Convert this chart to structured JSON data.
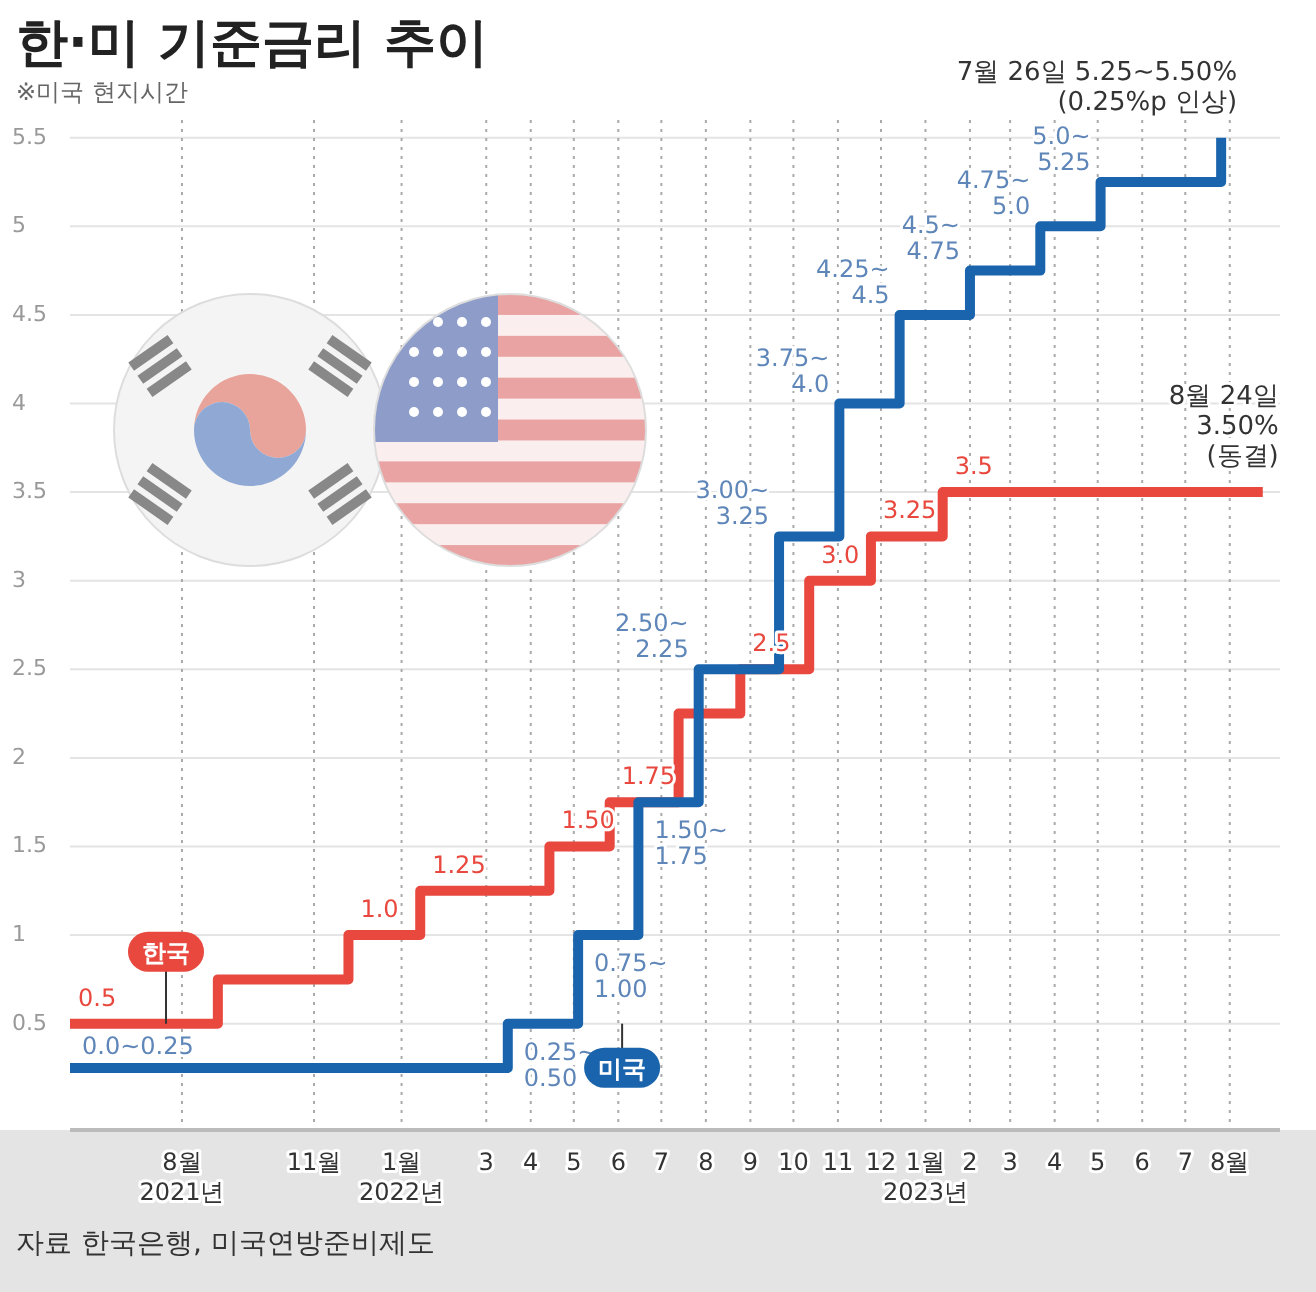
{
  "chart_data": {
    "type": "step",
    "title": "한·미 기준금리 추이",
    "subtitle": "※미국 현지시간",
    "xlim": [
      "2021-05-15",
      "2023-09-05"
    ],
    "xticks": [
      {
        "value": "2021-08",
        "label": "8월\n2021년"
      },
      {
        "value": "2021-11",
        "label": "11월"
      },
      {
        "value": "2022-01",
        "label": "1월\n2022년"
      },
      {
        "value": "2022-03",
        "label": "3"
      },
      {
        "value": "2022-04",
        "label": "4"
      },
      {
        "value": "2022-05",
        "label": "5"
      },
      {
        "value": "2022-06",
        "label": "6"
      },
      {
        "value": "2022-07",
        "label": "7"
      },
      {
        "value": "2022-08",
        "label": "8"
      },
      {
        "value": "2022-09",
        "label": "9"
      },
      {
        "value": "2022-10",
        "label": "10"
      },
      {
        "value": "2022-11",
        "label": "11"
      },
      {
        "value": "2022-12",
        "label": "12"
      },
      {
        "value": "2023-01",
        "label": "1월\n2023년"
      },
      {
        "value": "2023-02",
        "label": "2"
      },
      {
        "value": "2023-03",
        "label": "3"
      },
      {
        "value": "2023-04",
        "label": "4"
      },
      {
        "value": "2023-05",
        "label": "5"
      },
      {
        "value": "2023-06",
        "label": "6"
      },
      {
        "value": "2023-07",
        "label": "7"
      },
      {
        "value": "2023-08",
        "label": "8월"
      }
    ],
    "ylim": [
      -0.1,
      5.6
    ],
    "yticks": [
      0.5,
      1.0,
      1.5,
      2.0,
      2.5,
      3.0,
      3.5,
      4.0,
      4.5,
      5.0,
      5.5
    ],
    "grid": true,
    "series": [
      {
        "name": "한국",
        "color": "#e8483e",
        "x": [
          "2021-05-15",
          "2021-08-26",
          "2021-11-25",
          "2022-01-14",
          "2022-04-14",
          "2022-05-26",
          "2022-07-13",
          "2022-08-25",
          "2022-10-12",
          "2022-11-24",
          "2023-01-13",
          "2023-08-24"
        ],
        "values": [
          0.5,
          0.75,
          1.0,
          1.25,
          1.5,
          1.75,
          2.25,
          2.5,
          3.0,
          3.25,
          3.5,
          3.5
        ],
        "value_labels": [
          "0.5",
          null,
          "1.0",
          "1.25",
          "1.50",
          "1.75",
          null,
          "2.5",
          "3.0",
          "3.25",
          "3.5",
          null
        ]
      },
      {
        "name": "미국",
        "color": "#1a64ad",
        "x": [
          "2021-05-15",
          "2022-03-16",
          "2022-05-04",
          "2022-06-15",
          "2022-07-27",
          "2022-09-21",
          "2022-11-02",
          "2022-12-14",
          "2023-02-01",
          "2023-03-22",
          "2023-05-03",
          "2023-07-26"
        ],
        "values": [
          0.25,
          0.5,
          1.0,
          1.75,
          2.5,
          3.25,
          4.0,
          4.5,
          4.75,
          5.0,
          5.25,
          5.5
        ],
        "value_labels": [
          "0.0~0.25",
          "0.25~\n0.50",
          "0.75~\n1.00",
          "1.50~\n1.75",
          "2.50~\n2.25",
          "3.00~\n3.25",
          "3.75~\n4.0",
          "4.25~\n4.5",
          "4.5~\n4.75",
          "4.75~\n5.0",
          "5.0~\n5.25",
          null
        ]
      }
    ],
    "annotations": [
      {
        "text": "7월 26일 5.25~5.50%\n(0.25%p 인상)",
        "x": "2023-07-26",
        "y": 5.5
      },
      {
        "text": "8월 24일\n3.50%\n(동결)",
        "x": "2023-08-24",
        "y": 3.5
      },
      "자료 한국은행, 미국연방준비제도"
    ]
  }
}
